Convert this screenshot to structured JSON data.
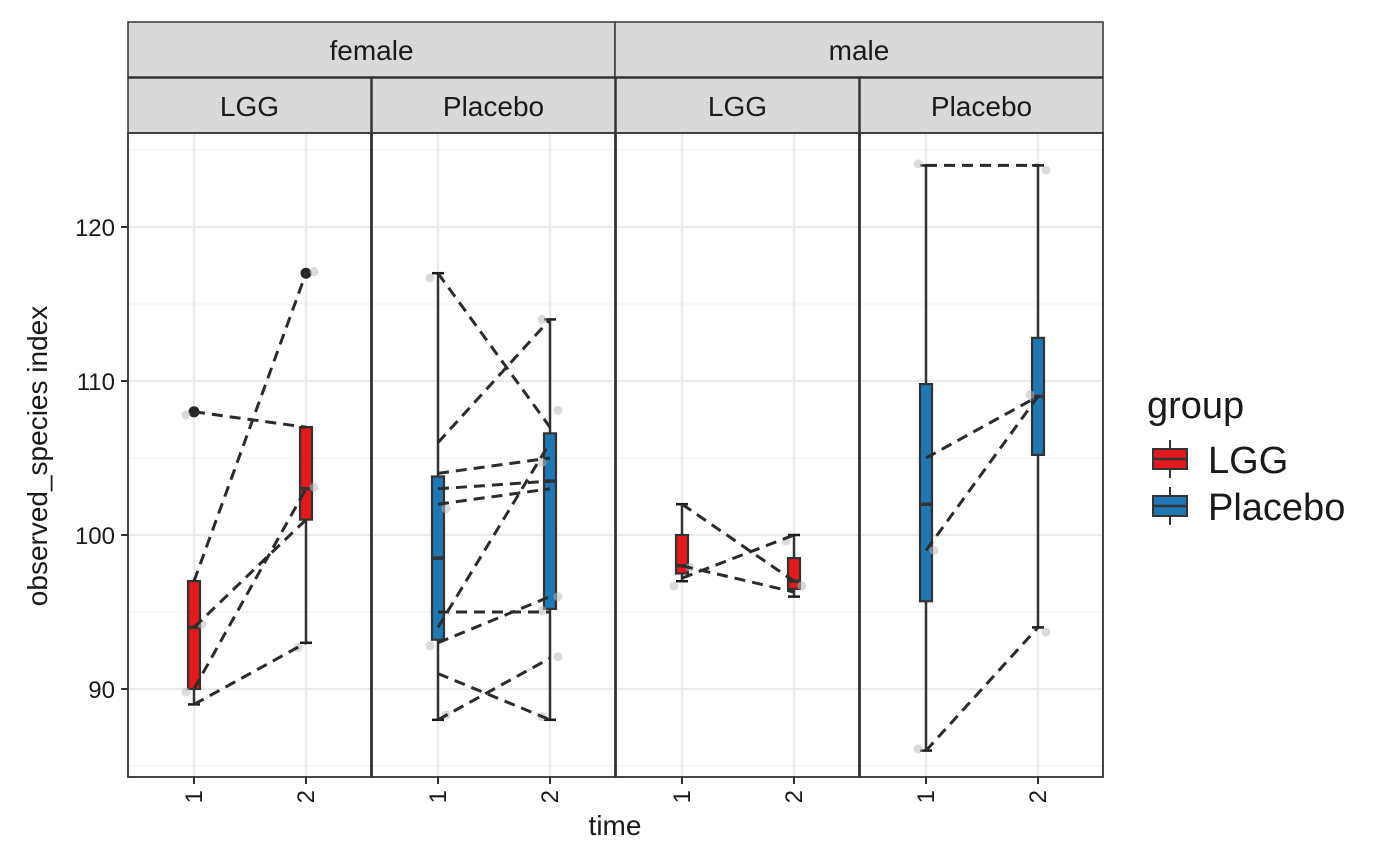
{
  "chart_data": {
    "type": "box",
    "xlabel": "time",
    "ylabel": "observed_species index",
    "ylim": [
      84.5,
      126
    ],
    "yticks": [
      90,
      100,
      110,
      120
    ],
    "ytick_labels": [
      "90",
      "100",
      "110",
      "120"
    ],
    "x_categories": [
      "1",
      "2"
    ],
    "grid": true,
    "legend": {
      "title": "group",
      "position": "right",
      "entries": [
        {
          "label": "LGG",
          "color": "#e31a1c"
        },
        {
          "label": "Placebo",
          "color": "#1f78b4"
        }
      ]
    },
    "facets": [
      {
        "sex": "female",
        "group": "LGG",
        "color": "#e31a1c",
        "boxes": [
          {
            "time": "1",
            "lower_whisker": 89,
            "q1": 90,
            "median": 94,
            "q3": 97,
            "upper_whisker": 97,
            "outliers": [
              108
            ]
          },
          {
            "time": "2",
            "lower_whisker": 93,
            "q1": 101,
            "median": 103,
            "q3": 107,
            "upper_whisker": 107,
            "outliers": [
              117
            ]
          }
        ],
        "points": [
          {
            "time": "1",
            "y": 107.8
          },
          {
            "time": "1",
            "y": 94.2
          },
          {
            "time": "1",
            "y": 89.8
          },
          {
            "time": "2",
            "y": 117.1
          },
          {
            "time": "2",
            "y": 92.7
          },
          {
            "time": "2",
            "y": 103.1
          }
        ],
        "pairs": [
          [
            108,
            107
          ],
          [
            97,
            117
          ],
          [
            94,
            101
          ],
          [
            90,
            103
          ],
          [
            89,
            93
          ]
        ]
      },
      {
        "sex": "female",
        "group": "Placebo",
        "color": "#1f78b4",
        "boxes": [
          {
            "time": "1",
            "lower_whisker": 88,
            "q1": 93.2,
            "median": 98.5,
            "q3": 103.8,
            "upper_whisker": 117,
            "outliers": []
          },
          {
            "time": "2",
            "lower_whisker": 88,
            "q1": 95.2,
            "median": 103.5,
            "q3": 106.6,
            "upper_whisker": 114,
            "outliers": []
          }
        ],
        "points": [
          {
            "time": "1",
            "y": 116.7
          },
          {
            "time": "1",
            "y": 101.7
          },
          {
            "time": "1",
            "y": 92.8
          },
          {
            "time": "1",
            "y": 88.3
          },
          {
            "time": "2",
            "y": 114
          },
          {
            "time": "2",
            "y": 108.1
          },
          {
            "time": "2",
            "y": 104.7
          },
          {
            "time": "2",
            "y": 96
          },
          {
            "time": "2",
            "y": 95.1
          },
          {
            "time": "2",
            "y": 92.1
          },
          {
            "time": "2",
            "y": 88.2
          }
        ],
        "pairs": [
          [
            117,
            107
          ],
          [
            106,
            114
          ],
          [
            104,
            105
          ],
          [
            103,
            103.5
          ],
          [
            102,
            103
          ],
          [
            95,
            95
          ],
          [
            94,
            106
          ],
          [
            93,
            96
          ],
          [
            91,
            88
          ],
          [
            88,
            92
          ]
        ]
      },
      {
        "sex": "male",
        "group": "LGG",
        "color": "#e31a1c",
        "boxes": [
          {
            "time": "1",
            "lower_whisker": 97,
            "q1": 97.5,
            "median": 98,
            "q3": 100,
            "upper_whisker": 102,
            "outliers": []
          },
          {
            "time": "2",
            "lower_whisker": 96,
            "q1": 96.5,
            "median": 97,
            "q3": 98.5,
            "upper_whisker": 100,
            "outliers": []
          }
        ],
        "points": [
          {
            "time": "1",
            "y": 96.7
          },
          {
            "time": "1",
            "y": 97.9
          },
          {
            "time": "2",
            "y": 99.6
          },
          {
            "time": "2",
            "y": 96.7
          }
        ],
        "pairs": [
          [
            102,
            97
          ],
          [
            98,
            96.3
          ],
          [
            97.2,
            100
          ]
        ]
      },
      {
        "sex": "male",
        "group": "Placebo",
        "color": "#1f78b4",
        "boxes": [
          {
            "time": "1",
            "lower_whisker": 86,
            "q1": 95.7,
            "median": 102,
            "q3": 109.8,
            "upper_whisker": 124,
            "outliers": []
          },
          {
            "time": "2",
            "lower_whisker": 94,
            "q1": 105.2,
            "median": 109,
            "q3": 112.8,
            "upper_whisker": 124,
            "outliers": []
          }
        ],
        "points": [
          {
            "time": "1",
            "y": 124.1
          },
          {
            "time": "1",
            "y": 99
          },
          {
            "time": "1",
            "y": 86.1
          },
          {
            "time": "2",
            "y": 123.7
          },
          {
            "time": "2",
            "y": 109.1
          },
          {
            "time": "2",
            "y": 93.7
          }
        ],
        "pairs": [
          [
            124,
            124
          ],
          [
            105,
            109
          ],
          [
            99,
            109
          ],
          [
            86,
            94
          ]
        ]
      }
    ]
  }
}
